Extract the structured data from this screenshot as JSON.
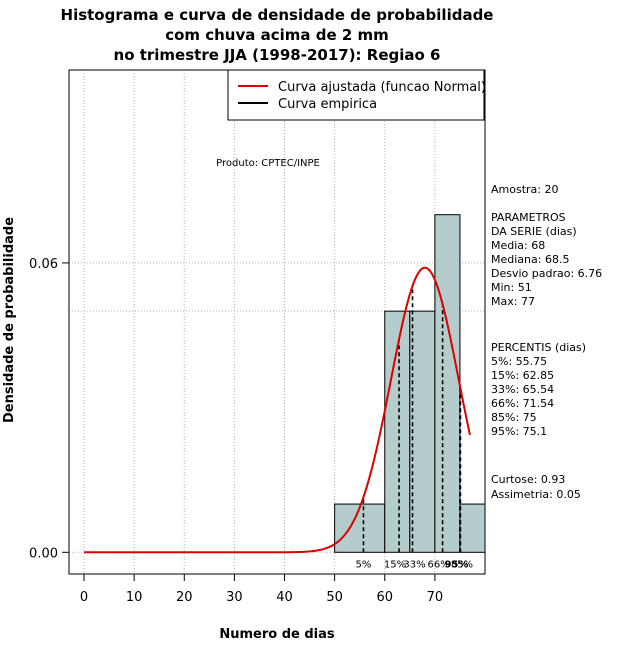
{
  "chart_data": {
    "type": "bar",
    "title_lines": [
      "Histograma e curva de densidade de probabilidade",
      "com chuva acima de 2 mm",
      "no trimestre JJA (1998-2017): Regiao 6"
    ],
    "xlabel": "Numero de dias",
    "ylabel": "Densidade de probabilidade",
    "xlim": [
      -3,
      80
    ],
    "ylim": [
      -0.0045,
      0.1
    ],
    "x_ticks": [
      0,
      10,
      20,
      30,
      40,
      50,
      60,
      70
    ],
    "x_tick_labels": [
      "0",
      "10",
      "20",
      "30",
      "40",
      "50",
      "60",
      "70"
    ],
    "y_ticks": [
      0.0,
      0.06
    ],
    "y_tick_labels": [
      "0.00",
      "0.06"
    ],
    "bins": [
      {
        "x0": 50,
        "x1": 60,
        "density": 0.01
      },
      {
        "x0": 60,
        "x1": 65,
        "density": 0.05
      },
      {
        "x0": 65,
        "x1": 70,
        "density": 0.05
      },
      {
        "x0": 70,
        "x1": 75,
        "density": 0.07
      },
      {
        "x0": 75,
        "x1": 80,
        "density": 0.01
      }
    ],
    "bar_color": "#b5cccc",
    "normal_curve": {
      "mean": 68,
      "sd": 6.76,
      "x_from": 0,
      "x_to": 77,
      "color": "#dd0000"
    },
    "percentile_lines": [
      {
        "label": "5%",
        "x": 55.75
      },
      {
        "label": "15%",
        "x": 62.85
      },
      {
        "label": "33%",
        "x": 65.54
      },
      {
        "label": "66%",
        "x": 71.54
      },
      {
        "label": "85%",
        "x": 75
      },
      {
        "label": "95%",
        "x": 75.1
      }
    ],
    "legend": [
      {
        "label": "Curva ajustada (funcao Normal)",
        "color": "#dd0000"
      },
      {
        "label": "Curva empirica",
        "color": "#000000"
      }
    ],
    "legend_placement": "top-right",
    "grid": true,
    "product_label": "Produto: CPTEC/INPE"
  },
  "stats": {
    "amostra": "Amostra: 20",
    "parametros_title": [
      " PARAMETROS",
      "DA SERIE (dias)"
    ],
    "parametros": [
      "  Media: 68",
      "  Mediana: 68.5",
      "  Desvio padrao: 6.76",
      "  Min: 51",
      "  Max: 77"
    ],
    "percentis_title": "PERCENTIS (dias)",
    "percentis": [
      "  5%: 55.75",
      "  15%: 62.85",
      "  33%: 65.54",
      "  66%: 71.54",
      "  85%: 75",
      "  95%: 75.1"
    ],
    "curtose": "   Curtose: 0.93",
    "assimetria": "Assimetria: 0.05"
  }
}
